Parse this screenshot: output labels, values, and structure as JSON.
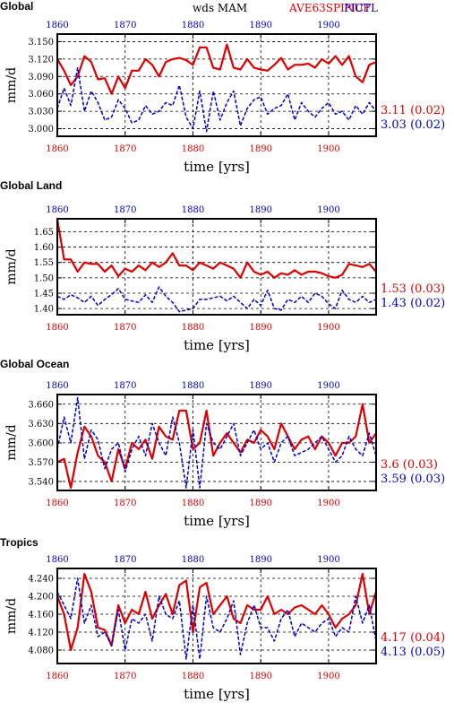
{
  "header": {
    "center": "wds  MAM",
    "right_red": "AVE63SPINUP",
    "right_blue": "PICTL"
  },
  "colors": {
    "red": "#dd0000",
    "blue": "#0000cc",
    "grid": "#000000"
  },
  "chart_data": [
    {
      "type": "line",
      "title": "Global",
      "xlabel": "time [yrs]",
      "ylabel": "mm/d",
      "xlim": [
        1860,
        1907
      ],
      "ylim": [
        2.987,
        3.163
      ],
      "yticks": [
        3.0,
        3.03,
        3.06,
        3.09,
        3.12,
        3.15
      ],
      "yticklabels": [
        "3.000",
        "3.030",
        "3.060",
        "3.090",
        "3.120",
        "3.150"
      ],
      "xticks": [
        1860,
        1870,
        1880,
        1890,
        1900
      ],
      "xticklabels_top": [
        "1860",
        "1870",
        "1880",
        "1890",
        "1900"
      ],
      "xticklabels_bottom": [
        "1860",
        "1870",
        "1880",
        "1890",
        "1900"
      ],
      "grid": true,
      "x": [
        1860,
        1861,
        1862,
        1863,
        1864,
        1865,
        1866,
        1867,
        1868,
        1869,
        1870,
        1871,
        1872,
        1873,
        1874,
        1875,
        1876,
        1877,
        1878,
        1879,
        1880,
        1881,
        1882,
        1883,
        1884,
        1885,
        1886,
        1887,
        1888,
        1889,
        1890,
        1891,
        1892,
        1893,
        1894,
        1895,
        1896,
        1897,
        1898,
        1899,
        1900,
        1901,
        1902,
        1903,
        1904,
        1905,
        1906,
        1907
      ],
      "series": [
        {
          "color": "red",
          "values": [
            3.12,
            3.1,
            3.075,
            3.09,
            3.125,
            3.115,
            3.085,
            3.087,
            3.06,
            3.09,
            3.07,
            3.1,
            3.1,
            3.12,
            3.11,
            3.09,
            3.115,
            3.12,
            3.122,
            3.118,
            3.11,
            3.14,
            3.14,
            3.105,
            3.102,
            3.145,
            3.105,
            3.102,
            3.12,
            3.105,
            3.102,
            3.1,
            3.11,
            3.122,
            3.102,
            3.11,
            3.11,
            3.112,
            3.105,
            3.12,
            3.112,
            3.125,
            3.11,
            3.125,
            3.09,
            3.08,
            3.11,
            3.115
          ]
        },
        {
          "color": "blue",
          "values": [
            3.035,
            3.07,
            3.04,
            3.105,
            3.03,
            3.065,
            3.045,
            3.015,
            3.02,
            3.05,
            3.035,
            3.01,
            3.015,
            3.04,
            3.025,
            3.03,
            3.045,
            3.04,
            3.075,
            3.02,
            3.0,
            3.065,
            2.995,
            3.065,
            3.015,
            3.045,
            3.065,
            3.005,
            3.035,
            3.05,
            3.055,
            3.025,
            3.035,
            3.04,
            3.06,
            3.015,
            3.045,
            3.03,
            3.02,
            3.035,
            3.045,
            3.025,
            3.03,
            3.015,
            3.04,
            3.025,
            3.045,
            3.03
          ]
        }
      ],
      "stats": [
        {
          "color": "red",
          "text": "3.11 (0.02)"
        },
        {
          "color": "blue",
          "text": "3.03 (0.02)"
        }
      ]
    },
    {
      "type": "line",
      "title": "Global Land",
      "xlabel": "time [yrs]",
      "ylabel": "mm/d",
      "xlim": [
        1860,
        1907
      ],
      "ylim": [
        1.38,
        1.692
      ],
      "yticks": [
        1.4,
        1.45,
        1.5,
        1.55,
        1.6,
        1.65
      ],
      "yticklabels": [
        "1.40",
        "1.45",
        "1.50",
        "1.55",
        "1.60",
        "1.65"
      ],
      "xticks": [
        1860,
        1870,
        1880,
        1890,
        1900
      ],
      "xticklabels_top": [
        "1860",
        "1870",
        "1880",
        "1890",
        "1900"
      ],
      "xticklabels_bottom": [
        "1860",
        "1870",
        "1880",
        "1890",
        "1900"
      ],
      "grid": true,
      "x": [
        1860,
        1861,
        1862,
        1863,
        1864,
        1865,
        1866,
        1867,
        1868,
        1869,
        1870,
        1871,
        1872,
        1873,
        1874,
        1875,
        1876,
        1877,
        1878,
        1879,
        1880,
        1881,
        1882,
        1883,
        1884,
        1885,
        1886,
        1887,
        1888,
        1889,
        1890,
        1891,
        1892,
        1893,
        1894,
        1895,
        1896,
        1897,
        1898,
        1899,
        1900,
        1901,
        1902,
        1903,
        1904,
        1905,
        1906,
        1907
      ],
      "series": [
        {
          "color": "red",
          "values": [
            1.69,
            1.56,
            1.56,
            1.52,
            1.55,
            1.545,
            1.545,
            1.52,
            1.54,
            1.505,
            1.53,
            1.52,
            1.54,
            1.525,
            1.55,
            1.535,
            1.55,
            1.58,
            1.54,
            1.54,
            1.525,
            1.55,
            1.54,
            1.53,
            1.55,
            1.54,
            1.53,
            1.5,
            1.55,
            1.52,
            1.51,
            1.52,
            1.5,
            1.515,
            1.51,
            1.525,
            1.51,
            1.52,
            1.52,
            1.515,
            1.505,
            1.5,
            1.51,
            1.545,
            1.54,
            1.535,
            1.545,
            1.52
          ]
        },
        {
          "color": "blue",
          "values": [
            1.44,
            1.43,
            1.445,
            1.435,
            1.42,
            1.44,
            1.41,
            1.43,
            1.445,
            1.465,
            1.43,
            1.425,
            1.42,
            1.445,
            1.42,
            1.47,
            1.44,
            1.42,
            1.39,
            1.395,
            1.4,
            1.43,
            1.43,
            1.435,
            1.44,
            1.425,
            1.44,
            1.42,
            1.4,
            1.43,
            1.41,
            1.46,
            1.4,
            1.395,
            1.43,
            1.42,
            1.44,
            1.42,
            1.45,
            1.44,
            1.415,
            1.4,
            1.46,
            1.43,
            1.42,
            1.44,
            1.42,
            1.43
          ]
        }
      ],
      "stats": [
        {
          "color": "red",
          "text": "1.53 (0.03)"
        },
        {
          "color": "blue",
          "text": "1.43 (0.02)"
        }
      ]
    },
    {
      "type": "line",
      "title": "Global Ocean",
      "xlabel": "time [yrs]",
      "ylabel": "mm/d",
      "xlim": [
        1860,
        1907
      ],
      "ylim": [
        3.526,
        3.675
      ],
      "yticks": [
        3.54,
        3.57,
        3.6,
        3.63,
        3.66
      ],
      "yticklabels": [
        "3.540",
        "3.570",
        "3.600",
        "3.630",
        "3.660"
      ],
      "xticks": [
        1860,
        1870,
        1880,
        1890,
        1900
      ],
      "xticklabels_top": [
        "1860",
        "1870",
        "1880",
        "1890",
        "1900"
      ],
      "xticklabels_bottom": [
        "1860",
        "1870",
        "1880",
        "1890",
        "1900"
      ],
      "grid": true,
      "x": [
        1860,
        1861,
        1862,
        1863,
        1864,
        1865,
        1866,
        1867,
        1868,
        1869,
        1870,
        1871,
        1872,
        1873,
        1874,
        1875,
        1876,
        1877,
        1878,
        1879,
        1880,
        1881,
        1882,
        1883,
        1884,
        1885,
        1886,
        1887,
        1888,
        1889,
        1890,
        1891,
        1892,
        1893,
        1894,
        1895,
        1896,
        1897,
        1898,
        1899,
        1900,
        1901,
        1902,
        1903,
        1904,
        1905,
        1906,
        1907
      ],
      "series": [
        {
          "color": "red",
          "values": [
            3.57,
            3.575,
            3.53,
            3.585,
            3.625,
            3.61,
            3.58,
            3.57,
            3.54,
            3.59,
            3.56,
            3.6,
            3.59,
            3.605,
            3.575,
            3.625,
            3.61,
            3.605,
            3.65,
            3.65,
            3.59,
            3.6,
            3.65,
            3.58,
            3.6,
            3.615,
            3.6,
            3.585,
            3.605,
            3.6,
            3.62,
            3.61,
            3.59,
            3.63,
            3.61,
            3.59,
            3.605,
            3.61,
            3.59,
            3.61,
            3.6,
            3.58,
            3.6,
            3.6,
            3.61,
            3.66,
            3.6,
            3.615
          ]
        },
        {
          "color": "blue",
          "values": [
            3.59,
            3.64,
            3.6,
            3.67,
            3.575,
            3.62,
            3.605,
            3.56,
            3.59,
            3.6,
            3.555,
            3.59,
            3.61,
            3.58,
            3.63,
            3.6,
            3.58,
            3.64,
            3.6,
            3.53,
            3.62,
            3.53,
            3.63,
            3.6,
            3.59,
            3.61,
            3.63,
            3.58,
            3.6,
            3.62,
            3.59,
            3.6,
            3.57,
            3.6,
            3.61,
            3.58,
            3.585,
            3.59,
            3.6,
            3.61,
            3.59,
            3.57,
            3.58,
            3.61,
            3.59,
            3.58,
            3.615,
            3.58
          ]
        }
      ],
      "stats": [
        {
          "color": "red",
          "text": "3.6 (0.03)"
        },
        {
          "color": "blue",
          "text": "3.59 (0.03)"
        }
      ]
    },
    {
      "type": "line",
      "title": "Tropics",
      "xlabel": "time [yrs]",
      "ylabel": "mm/d",
      "xlim": [
        1860,
        1907
      ],
      "ylim": [
        4.05,
        4.262
      ],
      "yticks": [
        4.08,
        4.12,
        4.16,
        4.2,
        4.24
      ],
      "yticklabels": [
        "4.080",
        "4.120",
        "4.160",
        "4.200",
        "4.240"
      ],
      "xticks": [
        1860,
        1870,
        1880,
        1890,
        1900
      ],
      "xticklabels_top": [
        "1860",
        "1870",
        "1880",
        "1890",
        "1900"
      ],
      "xticklabels_bottom": [
        "1860",
        "1870",
        "1880",
        "1890",
        "1900"
      ],
      "grid": true,
      "x": [
        1860,
        1861,
        1862,
        1863,
        1864,
        1865,
        1866,
        1867,
        1868,
        1869,
        1870,
        1871,
        1872,
        1873,
        1874,
        1875,
        1876,
        1877,
        1878,
        1879,
        1880,
        1881,
        1882,
        1883,
        1884,
        1885,
        1886,
        1887,
        1888,
        1889,
        1890,
        1891,
        1892,
        1893,
        1894,
        1895,
        1896,
        1897,
        1898,
        1899,
        1900,
        1901,
        1902,
        1903,
        1904,
        1905,
        1906,
        1907
      ],
      "series": [
        {
          "color": "red",
          "values": [
            4.2,
            4.16,
            4.08,
            4.13,
            4.25,
            4.21,
            4.13,
            4.125,
            4.09,
            4.18,
            4.14,
            4.17,
            4.16,
            4.21,
            4.15,
            4.18,
            4.205,
            4.16,
            4.225,
            4.235,
            4.12,
            4.22,
            4.23,
            4.16,
            4.18,
            4.2,
            4.15,
            4.14,
            4.18,
            4.17,
            4.17,
            4.2,
            4.16,
            4.17,
            4.16,
            4.175,
            4.18,
            4.17,
            4.16,
            4.18,
            4.16,
            4.13,
            4.15,
            4.16,
            4.18,
            4.25,
            4.16,
            4.21
          ]
        },
        {
          "color": "blue",
          "values": [
            4.21,
            4.18,
            4.15,
            4.24,
            4.14,
            4.18,
            4.11,
            4.12,
            4.09,
            4.17,
            4.08,
            4.15,
            4.14,
            4.16,
            4.1,
            4.2,
            4.16,
            4.15,
            4.19,
            4.06,
            4.18,
            4.06,
            4.2,
            4.13,
            4.12,
            4.15,
            4.19,
            4.07,
            4.14,
            4.18,
            4.13,
            4.13,
            4.1,
            4.15,
            4.17,
            4.11,
            4.14,
            4.13,
            4.12,
            4.14,
            4.15,
            4.11,
            4.13,
            4.12,
            4.2,
            4.14,
            4.18,
            4.1
          ]
        }
      ],
      "stats": [
        {
          "color": "red",
          "text": "4.17 (0.04)"
        },
        {
          "color": "blue",
          "text": "4.13 (0.05)"
        }
      ]
    }
  ]
}
